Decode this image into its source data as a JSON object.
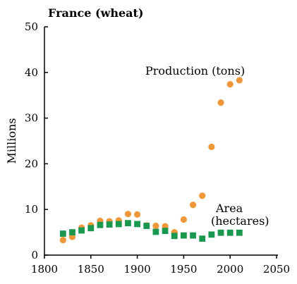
{
  "chart_data": {
    "type": "scatter",
    "title": "France (wheat)",
    "xlabel": "",
    "ylabel": "Millions",
    "xlim": [
      1800,
      2050
    ],
    "ylim": [
      0,
      50
    ],
    "xticks": [
      1800,
      1850,
      1900,
      1950,
      2000,
      2050
    ],
    "yticks": [
      0,
      10,
      20,
      30,
      40,
      50
    ],
    "grid": false,
    "colors": {
      "production": "#f0973a",
      "area": "#1a9850"
    },
    "annotations": {
      "production": "Production (tons)",
      "area_line1": "Area",
      "area_line2": "(hectares)"
    },
    "series": [
      {
        "key": "production",
        "marker": "circle",
        "points": [
          [
            1820,
            3.3
          ],
          [
            1830,
            4.0
          ],
          [
            1840,
            6.0
          ],
          [
            1850,
            6.5
          ],
          [
            1860,
            7.5
          ],
          [
            1870,
            7.4
          ],
          [
            1880,
            7.6
          ],
          [
            1890,
            9.0
          ],
          [
            1900,
            8.9
          ],
          [
            1910,
            6.5
          ],
          [
            1920,
            6.4
          ],
          [
            1930,
            6.3
          ],
          [
            1940,
            5.0
          ],
          [
            1950,
            7.8
          ],
          [
            1960,
            11.0
          ],
          [
            1970,
            13.0
          ],
          [
            1980,
            23.7
          ],
          [
            1990,
            33.4
          ],
          [
            2000,
            37.4
          ],
          [
            2010,
            38.3
          ]
        ]
      },
      {
        "key": "area",
        "marker": "square",
        "points": [
          [
            1820,
            4.7
          ],
          [
            1830,
            5.0
          ],
          [
            1840,
            5.4
          ],
          [
            1850,
            5.9
          ],
          [
            1860,
            6.6
          ],
          [
            1870,
            6.7
          ],
          [
            1880,
            6.8
          ],
          [
            1890,
            7.0
          ],
          [
            1900,
            6.8
          ],
          [
            1910,
            6.4
          ],
          [
            1920,
            5.1
          ],
          [
            1930,
            5.3
          ],
          [
            1940,
            4.2
          ],
          [
            1950,
            4.3
          ],
          [
            1960,
            4.3
          ],
          [
            1970,
            3.6
          ],
          [
            1980,
            4.5
          ],
          [
            1990,
            4.9
          ],
          [
            2000,
            4.9
          ],
          [
            2010,
            4.9
          ]
        ]
      }
    ]
  }
}
